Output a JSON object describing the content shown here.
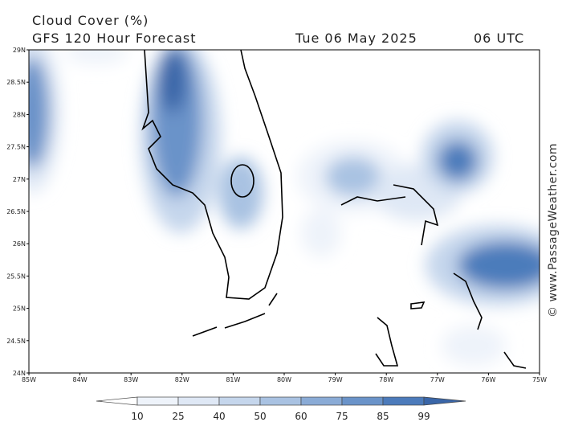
{
  "header": {
    "title": "Cloud Cover (%)",
    "subtitle": "GFS 120 Hour Forecast",
    "date": "Tue 06 May 2025",
    "time": "06 UTC"
  },
  "map": {
    "lat_labels": [
      "29N",
      "28.5N",
      "28N",
      "27.5N",
      "27N",
      "26.5N",
      "26N",
      "25.5N",
      "25N",
      "24.5N",
      "24N"
    ],
    "lon_labels": [
      "85W",
      "84W",
      "83W",
      "82W",
      "81W",
      "80W",
      "79W",
      "78W",
      "77W",
      "76W",
      "75W"
    ]
  },
  "colorbar": {
    "labels": [
      10,
      25,
      40,
      50,
      60,
      75,
      85,
      99
    ]
  },
  "watermark": "© www.PassageWeather.com"
}
